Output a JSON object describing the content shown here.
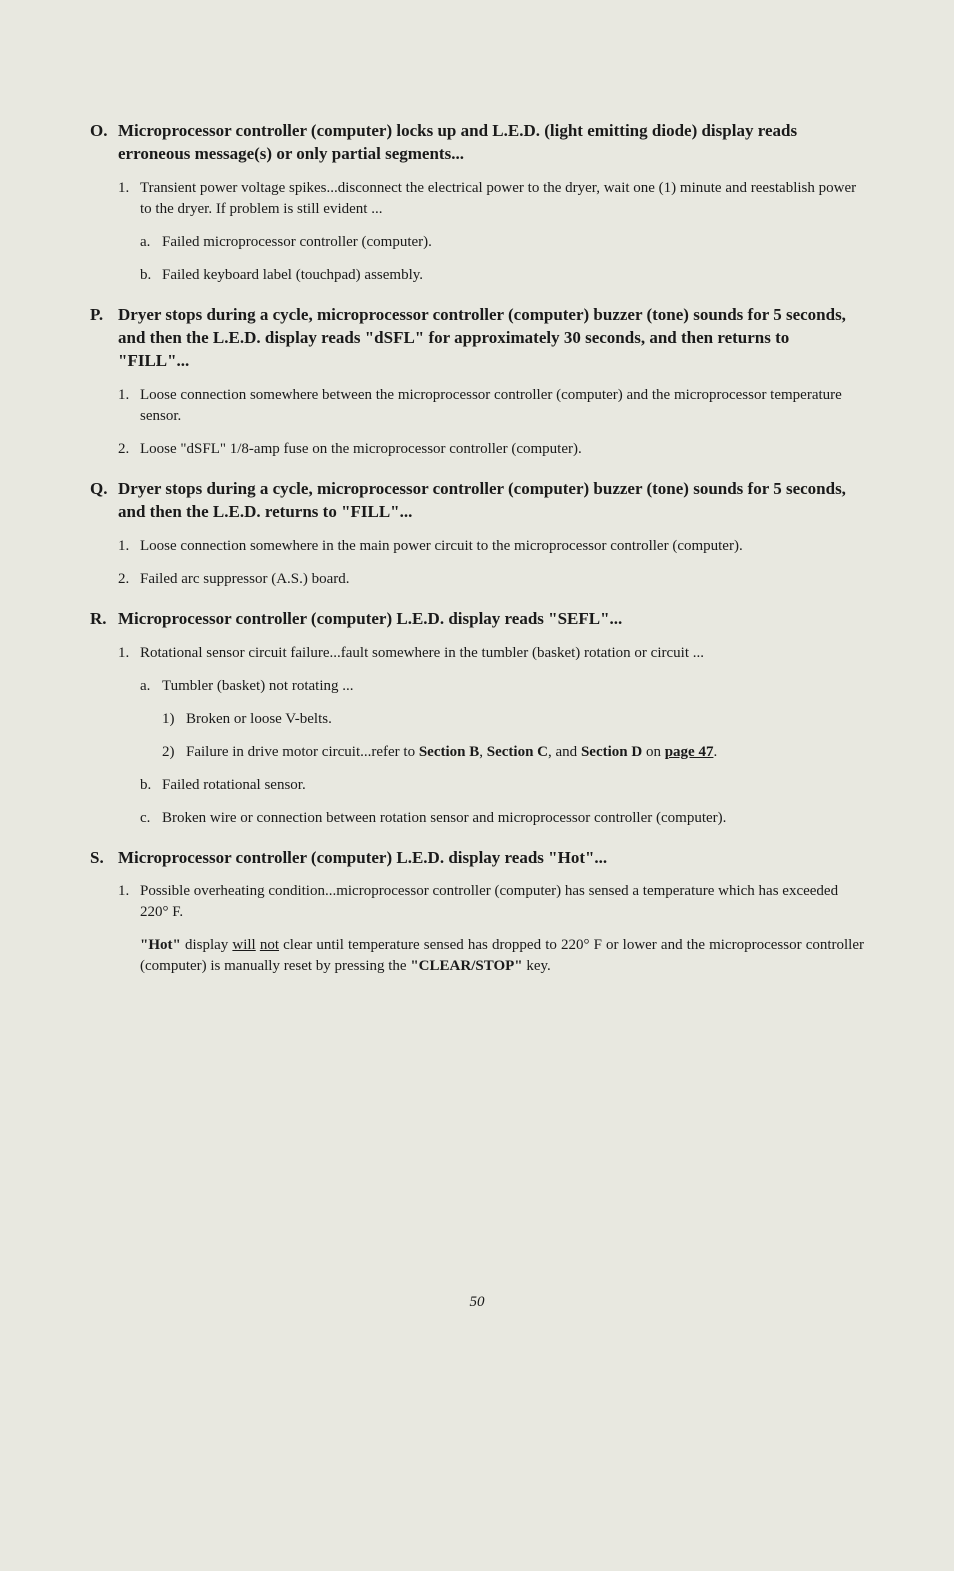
{
  "sections": {
    "O": {
      "letter": "O.",
      "title": "Microprocessor controller (computer) locks up and L.E.D. (light emitting diode) display reads erroneous message(s) or only partial segments...",
      "items": [
        {
          "num": "1.",
          "text": "Transient power voltage spikes...disconnect the electrical power to the dryer, wait one (1) minute and reestablish power to the dryer. If problem is still evident ...",
          "subitems": [
            {
              "let": "a.",
              "text": "Failed microprocessor controller (computer)."
            },
            {
              "let": "b.",
              "text": "Failed keyboard label (touchpad) assembly."
            }
          ]
        }
      ]
    },
    "P": {
      "letter": "P.",
      "title": "Dryer stops during a cycle, microprocessor controller (computer) buzzer (tone) sounds for 5 seconds, and then the L.E.D. display reads \"dSFL\" for approximately 30 seconds, and then returns to \"FILL\"...",
      "items": [
        {
          "num": "1.",
          "text": "Loose connection somewhere between the microprocessor controller (computer) and the microprocessor temperature sensor."
        },
        {
          "num": "2.",
          "text": "Loose \"dSFL\" 1/8-amp fuse on the microprocessor controller (computer)."
        }
      ]
    },
    "Q": {
      "letter": "Q.",
      "title": "Dryer stops during a cycle, microprocessor controller (computer) buzzer (tone) sounds for 5 seconds, and then the L.E.D. returns to \"FILL\"...",
      "items": [
        {
          "num": "1.",
          "text": "Loose connection somewhere in the main power circuit to the microprocessor controller (computer)."
        },
        {
          "num": "2.",
          "text": "Failed arc suppressor (A.S.) board."
        }
      ]
    },
    "R": {
      "letter": "R.",
      "title": "Microprocessor controller (computer) L.E.D. display reads \"SEFL\"...",
      "items": [
        {
          "num": "1.",
          "text": "Rotational sensor circuit failure...fault somewhere in the tumbler (basket) rotation or circuit ...",
          "subitems": [
            {
              "let": "a.",
              "text": "Tumbler (basket) not rotating ...",
              "subs": [
                {
                  "snum": "1)",
                  "text": "Broken or loose V-belts."
                },
                {
                  "snum": "2)",
                  "prefix": "Failure in drive motor circuit...refer to ",
                  "bold1": "Section B",
                  "sep1": ", ",
                  "bold2": "Section C",
                  "sep2": ", and ",
                  "bold3": "Section D",
                  "on": " on ",
                  "page_ref": "page 47",
                  "suffix": "."
                }
              ]
            },
            {
              "let": "b.",
              "text": "Failed  rotational sensor."
            },
            {
              "let": "c.",
              "text": "Broken wire or connection between rotation sensor and microprocessor controller (computer)."
            }
          ]
        }
      ]
    },
    "S": {
      "letter": "S.",
      "title": "Microprocessor controller (computer) L.E.D. display reads \"Hot\"...",
      "items": [
        {
          "num": "1.",
          "text": "Possible overheating condition...microprocessor controller (computer) has sensed a temperature which has exceeded 220° F."
        }
      ],
      "note": {
        "bold_start": "\"Hot\"",
        "plain1": " display ",
        "u1": "will",
        "space": " ",
        "u2": "not",
        "plain2": " clear until temperature sensed has dropped to 220° F or lower and the micro­processor controller (computer) is manually reset by pressing the ",
        "bold_end": "\"CLEAR/STOP\"",
        "suffix": " key."
      }
    }
  },
  "page_number": "50"
}
